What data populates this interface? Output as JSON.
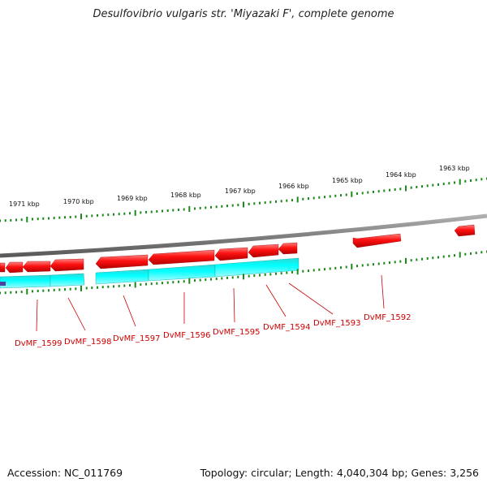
{
  "title": "Desulfovibrio vulgaris str. 'Miyazaki F', complete genome",
  "footer": {
    "accession": "Accession: NC_011769",
    "topology": "Topology: circular; Length: 4,040,304 bp; Genes: 3,256"
  },
  "colors": {
    "gene_forward": "#ff0000",
    "feature_track": "#00ffff",
    "backbone": "#888888",
    "ticks": "#1a8a1a",
    "label": "#cc0000"
  },
  "kbp_labels": [
    "1971 kbp",
    "1970 kbp",
    "1969 kbp",
    "1968 kbp",
    "1967 kbp",
    "1966 kbp",
    "1965 kbp",
    "1964 kbp",
    "1963 kbp"
  ],
  "gene_labels": [
    "DvMF_1599",
    "DvMF_1598",
    "DvMF_1597",
    "DvMF_1596",
    "DvMF_1595",
    "DvMF_1594",
    "DvMF_1593",
    "DvMF_1592"
  ]
}
